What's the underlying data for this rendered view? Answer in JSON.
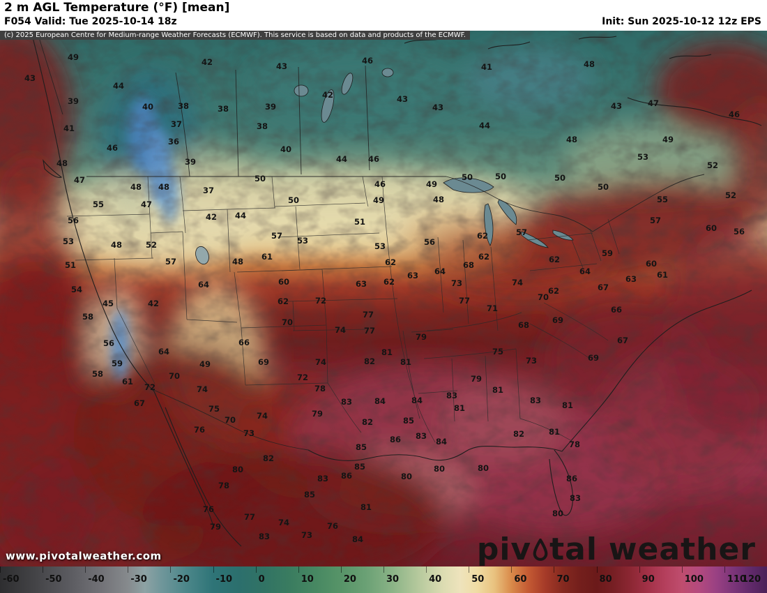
{
  "header": {
    "title": "2 m AGL Temperature (°F) [mean]",
    "valid": "F054 Valid: Tue 2025-10-14 18z",
    "init": "Init: Sun 2025-10-12 12z EPS"
  },
  "copyright": "(c) 2025 European Centre for Medium-range Weather Forecasts (ECMWF). This service is based on data and products of the ECMWF.",
  "watermark": {
    "logo_part1": "piv",
    "logo_part2": "tal",
    "logo_part3": "weather",
    "url": "www.pivotalweather.com"
  },
  "map": {
    "units": "°F",
    "labels": [
      [
        49,
        105,
        42
      ],
      [
        42,
        297,
        49
      ],
      [
        43,
        404,
        55
      ],
      [
        46,
        527,
        47
      ],
      [
        41,
        698,
        56
      ],
      [
        48,
        845,
        52
      ],
      [
        43,
        43,
        72
      ],
      [
        44,
        170,
        83
      ],
      [
        39,
        105,
        105
      ],
      [
        40,
        212,
        113
      ],
      [
        38,
        263,
        112
      ],
      [
        38,
        320,
        116
      ],
      [
        39,
        388,
        113
      ],
      [
        42,
        470,
        96
      ],
      [
        43,
        577,
        102
      ],
      [
        43,
        628,
        114
      ],
      [
        43,
        884,
        112
      ],
      [
        47,
        937,
        108
      ],
      [
        46,
        1053,
        124
      ],
      [
        41,
        99,
        144
      ],
      [
        37,
        253,
        138
      ],
      [
        38,
        376,
        141
      ],
      [
        44,
        695,
        140
      ],
      [
        48,
        820,
        160
      ],
      [
        46,
        161,
        172
      ],
      [
        36,
        249,
        163
      ],
      [
        40,
        410,
        174
      ],
      [
        49,
        958,
        160
      ],
      [
        48,
        89,
        194
      ],
      [
        39,
        273,
        192
      ],
      [
        44,
        490,
        188
      ],
      [
        46,
        536,
        188
      ],
      [
        53,
        922,
        185
      ],
      [
        52,
        1022,
        197
      ],
      [
        47,
        114,
        218
      ],
      [
        48,
        195,
        228
      ],
      [
        48,
        235,
        228
      ],
      [
        37,
        299,
        233
      ],
      [
        50,
        373,
        216
      ],
      [
        46,
        545,
        224
      ],
      [
        49,
        619,
        224
      ],
      [
        50,
        670,
        214
      ],
      [
        50,
        718,
        213
      ],
      [
        50,
        803,
        215
      ],
      [
        50,
        865,
        228
      ],
      [
        55,
        950,
        246
      ],
      [
        52,
        1048,
        240
      ],
      [
        55,
        141,
        253
      ],
      [
        47,
        210,
        253
      ],
      [
        50,
        421,
        247
      ],
      [
        49,
        543,
        247
      ],
      [
        48,
        629,
        246
      ],
      [
        57,
        940,
        276
      ],
      [
        56,
        105,
        276
      ],
      [
        42,
        303,
        271
      ],
      [
        44,
        345,
        269
      ],
      [
        51,
        516,
        278
      ],
      [
        60,
        1020,
        287
      ],
      [
        56,
        1060,
        292
      ],
      [
        53,
        98,
        306
      ],
      [
        48,
        167,
        311
      ],
      [
        52,
        217,
        311
      ],
      [
        57,
        397,
        298
      ],
      [
        53,
        434,
        305
      ],
      [
        53,
        545,
        313
      ],
      [
        56,
        616,
        307
      ],
      [
        62,
        692,
        298
      ],
      [
        57,
        748,
        293
      ],
      [
        59,
        871,
        323
      ],
      [
        51,
        101,
        340
      ],
      [
        57,
        245,
        335
      ],
      [
        48,
        341,
        335
      ],
      [
        61,
        383,
        328
      ],
      [
        62,
        560,
        336
      ],
      [
        64,
        631,
        349
      ],
      [
        68,
        672,
        340
      ],
      [
        62,
        694,
        328
      ],
      [
        62,
        795,
        332
      ],
      [
        64,
        839,
        349
      ],
      [
        63,
        905,
        360
      ],
      [
        60,
        934,
        338
      ],
      [
        61,
        950,
        354
      ],
      [
        54,
        110,
        375
      ],
      [
        64,
        292,
        368
      ],
      [
        60,
        407,
        364
      ],
      [
        63,
        518,
        367
      ],
      [
        62,
        558,
        364
      ],
      [
        63,
        592,
        355
      ],
      [
        73,
        655,
        366
      ],
      [
        74,
        742,
        365
      ],
      [
        70,
        779,
        386
      ],
      [
        62,
        794,
        377
      ],
      [
        67,
        865,
        372
      ],
      [
        45,
        155,
        395
      ],
      [
        42,
        220,
        395
      ],
      [
        62,
        406,
        392
      ],
      [
        72,
        460,
        391
      ],
      [
        77,
        666,
        391
      ],
      [
        71,
        706,
        402
      ],
      [
        69,
        800,
        419
      ],
      [
        66,
        884,
        404
      ],
      [
        58,
        126,
        414
      ],
      [
        70,
        412,
        422
      ],
      [
        74,
        488,
        433
      ],
      [
        77,
        528,
        411
      ],
      [
        77,
        530,
        434
      ],
      [
        79,
        604,
        443
      ],
      [
        68,
        751,
        426
      ],
      [
        67,
        893,
        448
      ],
      [
        56,
        156,
        452
      ],
      [
        66,
        350,
        451
      ],
      [
        64,
        235,
        464
      ],
      [
        75,
        714,
        464
      ],
      [
        69,
        851,
        473
      ],
      [
        59,
        168,
        481
      ],
      [
        49,
        294,
        482
      ],
      [
        69,
        378,
        479
      ],
      [
        74,
        460,
        479
      ],
      [
        81,
        555,
        465
      ],
      [
        82,
        530,
        478
      ],
      [
        81,
        582,
        479
      ],
      [
        73,
        762,
        477
      ],
      [
        58,
        140,
        496
      ],
      [
        70,
        250,
        499
      ],
      [
        72,
        434,
        501
      ],
      [
        79,
        683,
        503
      ],
      [
        81,
        714,
        519
      ],
      [
        61,
        183,
        507
      ],
      [
        72,
        215,
        515
      ],
      [
        78,
        459,
        517
      ],
      [
        83,
        497,
        536
      ],
      [
        84,
        545,
        535
      ],
      [
        84,
        598,
        534
      ],
      [
        83,
        648,
        527
      ],
      [
        81,
        659,
        545
      ],
      [
        83,
        768,
        534
      ],
      [
        81,
        814,
        541
      ],
      [
        67,
        200,
        538
      ],
      [
        74,
        290,
        518
      ],
      [
        75,
        307,
        546
      ],
      [
        79,
        455,
        553
      ],
      [
        70,
        330,
        562
      ],
      [
        74,
        376,
        556
      ],
      [
        82,
        527,
        565
      ],
      [
        85,
        586,
        563
      ],
      [
        76,
        286,
        576
      ],
      [
        73,
        357,
        581
      ],
      [
        86,
        567,
        590
      ],
      [
        83,
        604,
        585
      ],
      [
        85,
        518,
        601
      ],
      [
        84,
        633,
        593
      ],
      [
        82,
        744,
        582
      ],
      [
        81,
        795,
        579
      ],
      [
        78,
        824,
        597
      ],
      [
        82,
        385,
        617
      ],
      [
        80,
        583,
        643
      ],
      [
        80,
        630,
        632
      ],
      [
        80,
        693,
        631
      ],
      [
        83,
        463,
        646
      ],
      [
        86,
        497,
        642
      ],
      [
        80,
        341,
        633
      ],
      [
        85,
        516,
        629
      ],
      [
        78,
        321,
        656
      ],
      [
        85,
        444,
        669
      ],
      [
        81,
        525,
        687
      ],
      [
        86,
        820,
        646
      ],
      [
        83,
        825,
        674
      ],
      [
        76,
        299,
        690
      ],
      [
        79,
        309,
        715
      ],
      [
        77,
        358,
        701
      ],
      [
        74,
        407,
        709
      ],
      [
        76,
        477,
        714
      ],
      [
        80,
        800,
        696
      ],
      [
        83,
        379,
        729
      ],
      [
        73,
        440,
        727
      ],
      [
        84,
        513,
        733
      ]
    ]
  },
  "colorbar": {
    "min": -60,
    "max": 120,
    "ticks": [
      -60,
      -50,
      -40,
      -30,
      -20,
      -10,
      0,
      10,
      20,
      30,
      40,
      50,
      60,
      70,
      80,
      90,
      100,
      110,
      120
    ],
    "stops": [
      [
        -60,
        "#2e2e30"
      ],
      [
        -52,
        "#434346"
      ],
      [
        -44,
        "#5a5a5f"
      ],
      [
        -36,
        "#737378"
      ],
      [
        -30,
        "#868a8d"
      ],
      [
        -26,
        "#8da2a4"
      ],
      [
        -22,
        "#6f969a"
      ],
      [
        -16,
        "#4b8689"
      ],
      [
        -10,
        "#2e7477"
      ],
      [
        -4,
        "#2c6f6d"
      ],
      [
        2,
        "#317364"
      ],
      [
        8,
        "#3a7c60"
      ],
      [
        14,
        "#478862"
      ],
      [
        20,
        "#579468"
      ],
      [
        26,
        "#6ba175"
      ],
      [
        32,
        "#8ab386"
      ],
      [
        38,
        "#b4c89c"
      ],
      [
        44,
        "#dcdcb2"
      ],
      [
        48,
        "#eee3bc"
      ],
      [
        52,
        "#f0dca4"
      ],
      [
        56,
        "#e9c27f"
      ],
      [
        60,
        "#d98a4a"
      ],
      [
        64,
        "#c45a33"
      ],
      [
        68,
        "#a53a28"
      ],
      [
        72,
        "#862a20"
      ],
      [
        76,
        "#741f1c"
      ],
      [
        80,
        "#6b1a1a"
      ],
      [
        84,
        "#771f24"
      ],
      [
        88,
        "#8c2733"
      ],
      [
        92,
        "#a23147"
      ],
      [
        96,
        "#b43f5c"
      ],
      [
        100,
        "#bf4d6e"
      ],
      [
        104,
        "#b44a7e"
      ],
      [
        108,
        "#9a4183"
      ],
      [
        112,
        "#7c3579"
      ],
      [
        116,
        "#622a6b"
      ],
      [
        120,
        "#4b2158"
      ]
    ]
  }
}
